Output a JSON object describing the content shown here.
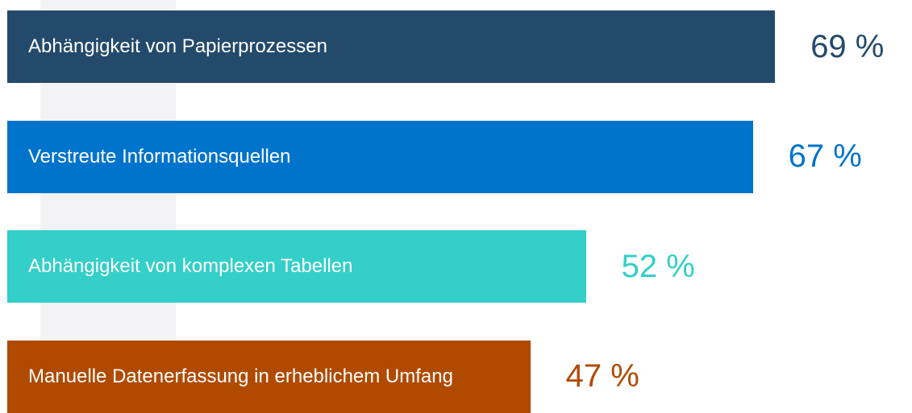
{
  "chart_data": {
    "type": "bar",
    "orientation": "horizontal",
    "categories": [
      "Abhängigkeit von Papierprozessen",
      "Verstreute Informationsquellen",
      "Abhängigkeit von komplexen Tabellen",
      "Manuelle Datenerfassung in erheblichem Umfang"
    ],
    "values": [
      69,
      67,
      52,
      47
    ],
    "value_labels": [
      "69 %",
      "67 %",
      "52 %",
      "47 %"
    ],
    "colors": [
      "#234a6b",
      "#0073cc",
      "#33cfc8",
      "#b04a00"
    ],
    "xlim": [
      0,
      70
    ]
  }
}
